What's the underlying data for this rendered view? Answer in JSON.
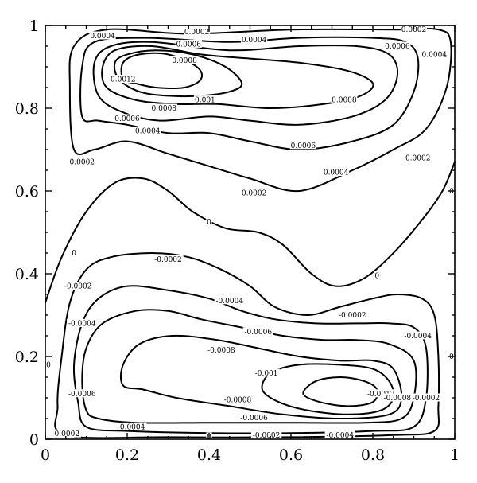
{
  "chart_data": {
    "type": "contour",
    "title": "",
    "xlabel": "",
    "ylabel": "",
    "xlim": [
      0,
      1
    ],
    "ylim": [
      0,
      1
    ],
    "x_ticks": [
      {
        "value": 0,
        "label": "0"
      },
      {
        "value": 0.2,
        "label": "0.2"
      },
      {
        "value": 0.4,
        "label": "0.4"
      },
      {
        "value": 0.6,
        "label": "0.6"
      },
      {
        "value": 0.8,
        "label": "0.8"
      },
      {
        "value": 1,
        "label": "1"
      }
    ],
    "y_ticks": [
      {
        "value": 0,
        "label": "0"
      },
      {
        "value": 0.2,
        "label": "0.2"
      },
      {
        "value": 0.4,
        "label": "0.4"
      },
      {
        "value": 0.6,
        "label": "0.6"
      },
      {
        "value": 0.8,
        "label": "0.8"
      },
      {
        "value": 1,
        "label": "1"
      }
    ],
    "grid": false,
    "contours": [
      {
        "level": "0.0002",
        "closed": true,
        "points": [
          [
            0.07,
            0.7
          ],
          [
            0.06,
            0.85
          ],
          [
            0.07,
            0.95
          ],
          [
            0.15,
            0.99
          ],
          [
            0.35,
            0.98
          ],
          [
            0.6,
            0.99
          ],
          [
            0.86,
            0.99
          ],
          [
            0.96,
            0.99
          ],
          [
            0.99,
            0.96
          ],
          [
            0.98,
            0.85
          ],
          [
            0.93,
            0.75
          ],
          [
            0.85,
            0.7
          ],
          [
            0.75,
            0.65
          ],
          [
            0.62,
            0.6
          ],
          [
            0.5,
            0.63
          ],
          [
            0.4,
            0.66
          ],
          [
            0.3,
            0.69
          ],
          [
            0.2,
            0.72
          ],
          [
            0.12,
            0.7
          ]
        ]
      },
      {
        "level": "0.0004",
        "closed": true,
        "points": [
          [
            0.09,
            0.78
          ],
          [
            0.09,
            0.9
          ],
          [
            0.12,
            0.96
          ],
          [
            0.25,
            0.97
          ],
          [
            0.45,
            0.96
          ],
          [
            0.62,
            0.97
          ],
          [
            0.8,
            0.97
          ],
          [
            0.88,
            0.96
          ],
          [
            0.91,
            0.92
          ],
          [
            0.9,
            0.84
          ],
          [
            0.85,
            0.76
          ],
          [
            0.75,
            0.72
          ],
          [
            0.62,
            0.7
          ],
          [
            0.5,
            0.72
          ],
          [
            0.4,
            0.74
          ],
          [
            0.3,
            0.74
          ],
          [
            0.2,
            0.76
          ],
          [
            0.13,
            0.77
          ]
        ]
      },
      {
        "level": "0.0006",
        "closed": true,
        "points": [
          [
            0.13,
            0.83
          ],
          [
            0.12,
            0.91
          ],
          [
            0.16,
            0.95
          ],
          [
            0.26,
            0.96
          ],
          [
            0.45,
            0.94
          ],
          [
            0.62,
            0.95
          ],
          [
            0.76,
            0.95
          ],
          [
            0.84,
            0.93
          ],
          [
            0.86,
            0.88
          ],
          [
            0.83,
            0.82
          ],
          [
            0.75,
            0.78
          ],
          [
            0.62,
            0.76
          ],
          [
            0.5,
            0.77
          ],
          [
            0.4,
            0.78
          ],
          [
            0.28,
            0.77
          ],
          [
            0.19,
            0.79
          ]
        ]
      },
      {
        "level": "0.0008",
        "closed": true,
        "points": [
          [
            0.15,
            0.85
          ],
          [
            0.14,
            0.9
          ],
          [
            0.17,
            0.94
          ],
          [
            0.26,
            0.95
          ],
          [
            0.38,
            0.93
          ],
          [
            0.5,
            0.92
          ],
          [
            0.62,
            0.91
          ],
          [
            0.74,
            0.89
          ],
          [
            0.8,
            0.86
          ],
          [
            0.77,
            0.83
          ],
          [
            0.68,
            0.81
          ],
          [
            0.55,
            0.8
          ],
          [
            0.42,
            0.81
          ],
          [
            0.32,
            0.81
          ],
          [
            0.22,
            0.82
          ]
        ]
      },
      {
        "level": "0.001",
        "closed": true,
        "points": [
          [
            0.18,
            0.87
          ],
          [
            0.17,
            0.91
          ],
          [
            0.2,
            0.93
          ],
          [
            0.27,
            0.94
          ],
          [
            0.36,
            0.93
          ],
          [
            0.44,
            0.9
          ],
          [
            0.48,
            0.86
          ],
          [
            0.45,
            0.84
          ],
          [
            0.38,
            0.83
          ],
          [
            0.3,
            0.83
          ],
          [
            0.23,
            0.84
          ]
        ]
      },
      {
        "level": "0.0012",
        "closed": true,
        "points": [
          [
            0.19,
            0.87
          ],
          [
            0.19,
            0.91
          ],
          [
            0.23,
            0.93
          ],
          [
            0.3,
            0.93
          ],
          [
            0.37,
            0.9
          ],
          [
            0.38,
            0.87
          ],
          [
            0.34,
            0.85
          ],
          [
            0.27,
            0.85
          ],
          [
            0.22,
            0.86
          ]
        ]
      },
      {
        "level": "0",
        "closed": false,
        "points": [
          [
            0,
            0.33
          ],
          [
            0.04,
            0.44
          ],
          [
            0.1,
            0.55
          ],
          [
            0.17,
            0.62
          ],
          [
            0.24,
            0.63
          ],
          [
            0.3,
            0.6
          ],
          [
            0.36,
            0.55
          ],
          [
            0.44,
            0.51
          ],
          [
            0.52,
            0.5
          ],
          [
            0.58,
            0.47
          ],
          [
            0.65,
            0.4
          ],
          [
            0.71,
            0.37
          ],
          [
            0.78,
            0.39
          ],
          [
            0.85,
            0.45
          ],
          [
            0.92,
            0.53
          ],
          [
            0.97,
            0.6
          ],
          [
            1,
            0.67
          ]
        ]
      },
      {
        "level": "-0.0002",
        "closed": true,
        "points": [
          [
            0.03,
            0.08
          ],
          [
            0.04,
            0.2
          ],
          [
            0.06,
            0.33
          ],
          [
            0.1,
            0.41
          ],
          [
            0.16,
            0.44
          ],
          [
            0.26,
            0.45
          ],
          [
            0.35,
            0.44
          ],
          [
            0.43,
            0.41
          ],
          [
            0.5,
            0.37
          ],
          [
            0.56,
            0.32
          ],
          [
            0.64,
            0.3
          ],
          [
            0.72,
            0.32
          ],
          [
            0.8,
            0.34
          ],
          [
            0.86,
            0.35
          ],
          [
            0.92,
            0.34
          ],
          [
            0.95,
            0.3
          ],
          [
            0.96,
            0.2
          ],
          [
            0.96,
            0.08
          ],
          [
            0.95,
            0.02
          ],
          [
            0.85,
            0.01
          ],
          [
            0.6,
            0.005
          ],
          [
            0.3,
            0.005
          ],
          [
            0.05,
            0.01
          ]
        ]
      },
      {
        "level": "-0.0004",
        "closed": true,
        "points": [
          [
            0.08,
            0.09
          ],
          [
            0.07,
            0.18
          ],
          [
            0.09,
            0.28
          ],
          [
            0.13,
            0.34
          ],
          [
            0.2,
            0.37
          ],
          [
            0.3,
            0.36
          ],
          [
            0.4,
            0.34
          ],
          [
            0.48,
            0.31
          ],
          [
            0.56,
            0.29
          ],
          [
            0.66,
            0.28
          ],
          [
            0.76,
            0.28
          ],
          [
            0.84,
            0.28
          ],
          [
            0.9,
            0.27
          ],
          [
            0.93,
            0.22
          ],
          [
            0.93,
            0.1
          ],
          [
            0.9,
            0.03
          ],
          [
            0.8,
            0.02
          ],
          [
            0.6,
            0.015
          ],
          [
            0.4,
            0.015
          ],
          [
            0.2,
            0.02
          ],
          [
            0.1,
            0.03
          ]
        ]
      },
      {
        "level": "-0.0006",
        "closed": true,
        "points": [
          [
            0.1,
            0.07
          ],
          [
            0.09,
            0.14
          ],
          [
            0.1,
            0.22
          ],
          [
            0.14,
            0.28
          ],
          [
            0.22,
            0.31
          ],
          [
            0.3,
            0.31
          ],
          [
            0.38,
            0.29
          ],
          [
            0.48,
            0.27
          ],
          [
            0.58,
            0.25
          ],
          [
            0.68,
            0.24
          ],
          [
            0.76,
            0.24
          ],
          [
            0.84,
            0.23
          ],
          [
            0.9,
            0.19
          ],
          [
            0.9,
            0.1
          ],
          [
            0.87,
            0.05
          ],
          [
            0.78,
            0.04
          ],
          [
            0.6,
            0.04
          ],
          [
            0.4,
            0.04
          ],
          [
            0.22,
            0.04
          ],
          [
            0.13,
            0.05
          ]
        ]
      },
      {
        "level": "-0.0008",
        "closed": true,
        "points": [
          [
            0.19,
            0.13
          ],
          [
            0.19,
            0.18
          ],
          [
            0.23,
            0.23
          ],
          [
            0.31,
            0.25
          ],
          [
            0.42,
            0.24
          ],
          [
            0.52,
            0.22
          ],
          [
            0.62,
            0.2
          ],
          [
            0.72,
            0.19
          ],
          [
            0.8,
            0.19
          ],
          [
            0.85,
            0.17
          ],
          [
            0.87,
            0.1
          ],
          [
            0.84,
            0.06
          ],
          [
            0.72,
            0.05
          ],
          [
            0.58,
            0.06
          ],
          [
            0.45,
            0.08
          ],
          [
            0.32,
            0.1
          ],
          [
            0.24,
            0.12
          ]
        ]
      },
      {
        "level": "-0.001",
        "closed": true,
        "points": [
          [
            0.53,
            0.12
          ],
          [
            0.55,
            0.16
          ],
          [
            0.62,
            0.18
          ],
          [
            0.72,
            0.18
          ],
          [
            0.8,
            0.17
          ],
          [
            0.84,
            0.14
          ],
          [
            0.85,
            0.1
          ],
          [
            0.82,
            0.07
          ],
          [
            0.74,
            0.06
          ],
          [
            0.64,
            0.07
          ],
          [
            0.57,
            0.09
          ]
        ]
      },
      {
        "level": "-0.0012",
        "closed": true,
        "points": [
          [
            0.63,
            0.11
          ],
          [
            0.66,
            0.14
          ],
          [
            0.72,
            0.15
          ],
          [
            0.78,
            0.14
          ],
          [
            0.81,
            0.12
          ],
          [
            0.8,
            0.09
          ],
          [
            0.74,
            0.08
          ],
          [
            0.67,
            0.09
          ]
        ]
      }
    ],
    "annotations": [
      {
        "text": "0.0004",
        "x": 0.14,
        "y": 0.975
      },
      {
        "text": "0.0002",
        "x": 0.37,
        "y": 0.985
      },
      {
        "text": "0.0006",
        "x": 0.35,
        "y": 0.955
      },
      {
        "text": "0.0004",
        "x": 0.51,
        "y": 0.965
      },
      {
        "text": "0.0002",
        "x": 0.9,
        "y": 0.99
      },
      {
        "text": "0.0006",
        "x": 0.86,
        "y": 0.95
      },
      {
        "text": "0.0004",
        "x": 0.95,
        "y": 0.93
      },
      {
        "text": "0.0008",
        "x": 0.34,
        "y": 0.915
      },
      {
        "text": "0.0012",
        "x": 0.19,
        "y": 0.87
      },
      {
        "text": "0.001",
        "x": 0.39,
        "y": 0.82
      },
      {
        "text": "0.0008",
        "x": 0.73,
        "y": 0.82
      },
      {
        "text": "0.0008",
        "x": 0.29,
        "y": 0.8
      },
      {
        "text": "0.0006",
        "x": 0.2,
        "y": 0.775
      },
      {
        "text": "0.0004",
        "x": 0.25,
        "y": 0.745
      },
      {
        "text": "0.0006",
        "x": 0.63,
        "y": 0.71
      },
      {
        "text": "0.0002",
        "x": 0.09,
        "y": 0.67
      },
      {
        "text": "0.0002",
        "x": 0.91,
        "y": 0.68
      },
      {
        "text": "0.0004",
        "x": 0.71,
        "y": 0.645
      },
      {
        "text": "0.0002",
        "x": 0.51,
        "y": 0.595
      },
      {
        "text": "0",
        "x": 0.4,
        "y": 0.525
      },
      {
        "text": "0",
        "x": 0.07,
        "y": 0.45
      },
      {
        "text": "-0.0002",
        "x": 0.3,
        "y": 0.435
      },
      {
        "text": "0",
        "x": 0.81,
        "y": 0.395
      },
      {
        "text": "-0.0002",
        "x": 0.08,
        "y": 0.37
      },
      {
        "text": "-0.0004",
        "x": 0.45,
        "y": 0.335
      },
      {
        "text": "-0.0002",
        "x": 0.75,
        "y": 0.3
      },
      {
        "text": "-0.0004",
        "x": 0.09,
        "y": 0.28
      },
      {
        "text": "-0.0006",
        "x": 0.52,
        "y": 0.26
      },
      {
        "text": "-0.0004",
        "x": 0.91,
        "y": 0.25
      },
      {
        "text": "-0.0008",
        "x": 0.43,
        "y": 0.215
      },
      {
        "text": "-0.001",
        "x": 0.54,
        "y": 0.16
      },
      {
        "text": "-0.0012",
        "x": 0.82,
        "y": 0.11
      },
      {
        "text": "-0.0008",
        "x": 0.86,
        "y": 0.1
      },
      {
        "text": "-0.0008",
        "x": 0.47,
        "y": 0.095
      },
      {
        "text": "-0.0002",
        "x": 0.93,
        "y": 0.1
      },
      {
        "text": "-0.0006",
        "x": 0.09,
        "y": 0.11
      },
      {
        "text": "-0.0006",
        "x": 0.51,
        "y": 0.052
      },
      {
        "text": "-0.0004",
        "x": 0.21,
        "y": 0.03
      },
      {
        "text": "-0.0002",
        "x": 0.05,
        "y": 0.013
      },
      {
        "text": "-0.0002",
        "x": 0.54,
        "y": 0.01
      },
      {
        "text": "-0.0004",
        "x": 0.72,
        "y": 0.01
      },
      {
        "text": "0",
        "x": 0.4,
        "y": 0.003
      },
      {
        "text": "0",
        "x": 0.005,
        "y": 0.18
      },
      {
        "text": "0",
        "x": 0.995,
        "y": 0.2
      },
      {
        "text": "0",
        "x": 0.995,
        "y": 0.6
      }
    ]
  }
}
